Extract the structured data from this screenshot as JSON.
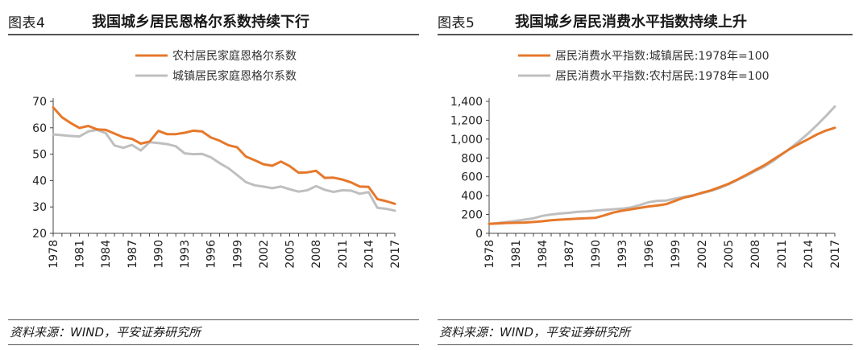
{
  "left": {
    "fig_label": "图表4",
    "title": "我国城乡居民恩格尔系数持续下行",
    "source": "资料来源：WIND，平安证券研究所"
  },
  "right": {
    "fig_label": "图表5",
    "title": "我国城乡居民消费水平指数持续上升",
    "source": "资料来源：WIND，平安证券研究所"
  },
  "chart_data": [
    {
      "type": "line",
      "title": "我国城乡居民恩格尔系数持续下行",
      "xlabel": "",
      "ylabel": "",
      "ylim": [
        20,
        70
      ],
      "yticks": [
        20,
        30,
        40,
        50,
        60,
        70
      ],
      "x": [
        1978,
        1979,
        1980,
        1981,
        1982,
        1983,
        1984,
        1985,
        1986,
        1987,
        1988,
        1989,
        1990,
        1991,
        1992,
        1993,
        1994,
        1995,
        1996,
        1997,
        1998,
        1999,
        2000,
        2001,
        2002,
        2003,
        2004,
        2005,
        2006,
        2007,
        2008,
        2009,
        2010,
        2011,
        2012,
        2013,
        2014,
        2015,
        2016,
        2017
      ],
      "xticks": [
        1978,
        1981,
        1984,
        1987,
        1990,
        1993,
        1996,
        1999,
        2002,
        2005,
        2008,
        2011,
        2014,
        2017
      ],
      "legend_position": "top",
      "series": [
        {
          "name": "农村居民家庭恩格尔系数",
          "color": "#E6782B",
          "values": [
            67.7,
            64.0,
            61.8,
            59.9,
            60.7,
            59.4,
            59.2,
            57.8,
            56.4,
            55.8,
            54.0,
            54.8,
            58.8,
            57.6,
            57.6,
            58.1,
            58.9,
            58.6,
            56.3,
            55.1,
            53.4,
            52.6,
            49.1,
            47.7,
            46.2,
            45.6,
            47.2,
            45.5,
            43.0,
            43.1,
            43.7,
            41.0,
            41.1,
            40.4,
            39.3,
            37.7,
            37.6,
            33.0,
            32.2,
            31.2
          ]
        },
        {
          "name": "城镇居民家庭恩格尔系数",
          "color": "#BFBFBF",
          "values": [
            57.5,
            57.2,
            56.9,
            56.7,
            58.6,
            59.2,
            58.0,
            53.3,
            52.4,
            53.5,
            51.4,
            54.5,
            54.2,
            53.8,
            53.0,
            50.3,
            50.0,
            50.1,
            48.8,
            46.6,
            44.7,
            42.1,
            39.4,
            38.2,
            37.7,
            37.1,
            37.7,
            36.7,
            35.8,
            36.3,
            37.9,
            36.5,
            35.7,
            36.3,
            36.2,
            35.0,
            35.6,
            29.7,
            29.3,
            28.6
          ]
        }
      ]
    },
    {
      "type": "line",
      "title": "我国城乡居民消费水平指数持续上升",
      "xlabel": "",
      "ylabel": "",
      "ylim": [
        0,
        1400
      ],
      "yticks": [
        0,
        200,
        400,
        600,
        800,
        1000,
        1200,
        1400
      ],
      "ytick_labels": [
        "0",
        "200",
        "400",
        "600",
        "800",
        "1,000",
        "1,200",
        "1,400"
      ],
      "x": [
        1978,
        1979,
        1980,
        1981,
        1982,
        1983,
        1984,
        1985,
        1986,
        1987,
        1988,
        1989,
        1990,
        1991,
        1992,
        1993,
        1994,
        1995,
        1996,
        1997,
        1998,
        1999,
        2000,
        2001,
        2002,
        2003,
        2004,
        2005,
        2006,
        2007,
        2008,
        2009,
        2010,
        2011,
        2012,
        2013,
        2014,
        2015,
        2016,
        2017
      ],
      "xticks": [
        1978,
        1981,
        1984,
        1987,
        1990,
        1993,
        1996,
        1999,
        2002,
        2005,
        2008,
        2011,
        2014,
        2017
      ],
      "legend_position": "top",
      "series": [
        {
          "name": "居民消费水平指数:城镇居民:1978年=100",
          "color": "#E6782B",
          "values": [
            100,
            104,
            110,
            112,
            114,
            120,
            128,
            138,
            145,
            150,
            156,
            160,
            165,
            190,
            220,
            240,
            255,
            270,
            285,
            295,
            310,
            345,
            380,
            400,
            430,
            455,
            490,
            525,
            570,
            620,
            670,
            720,
            780,
            840,
            900,
            950,
            1000,
            1050,
            1090,
            1120
          ]
        },
        {
          "name": "居民消费水平指数:农村居民:1978年=100",
          "color": "#BFBFBF",
          "values": [
            100,
            110,
            120,
            132,
            145,
            160,
            185,
            200,
            210,
            218,
            228,
            232,
            240,
            248,
            255,
            262,
            275,
            300,
            330,
            345,
            348,
            370,
            385,
            405,
            425,
            450,
            480,
            520,
            565,
            610,
            660,
            705,
            765,
            835,
            905,
            980,
            1060,
            1150,
            1245,
            1345
          ]
        }
      ]
    }
  ]
}
